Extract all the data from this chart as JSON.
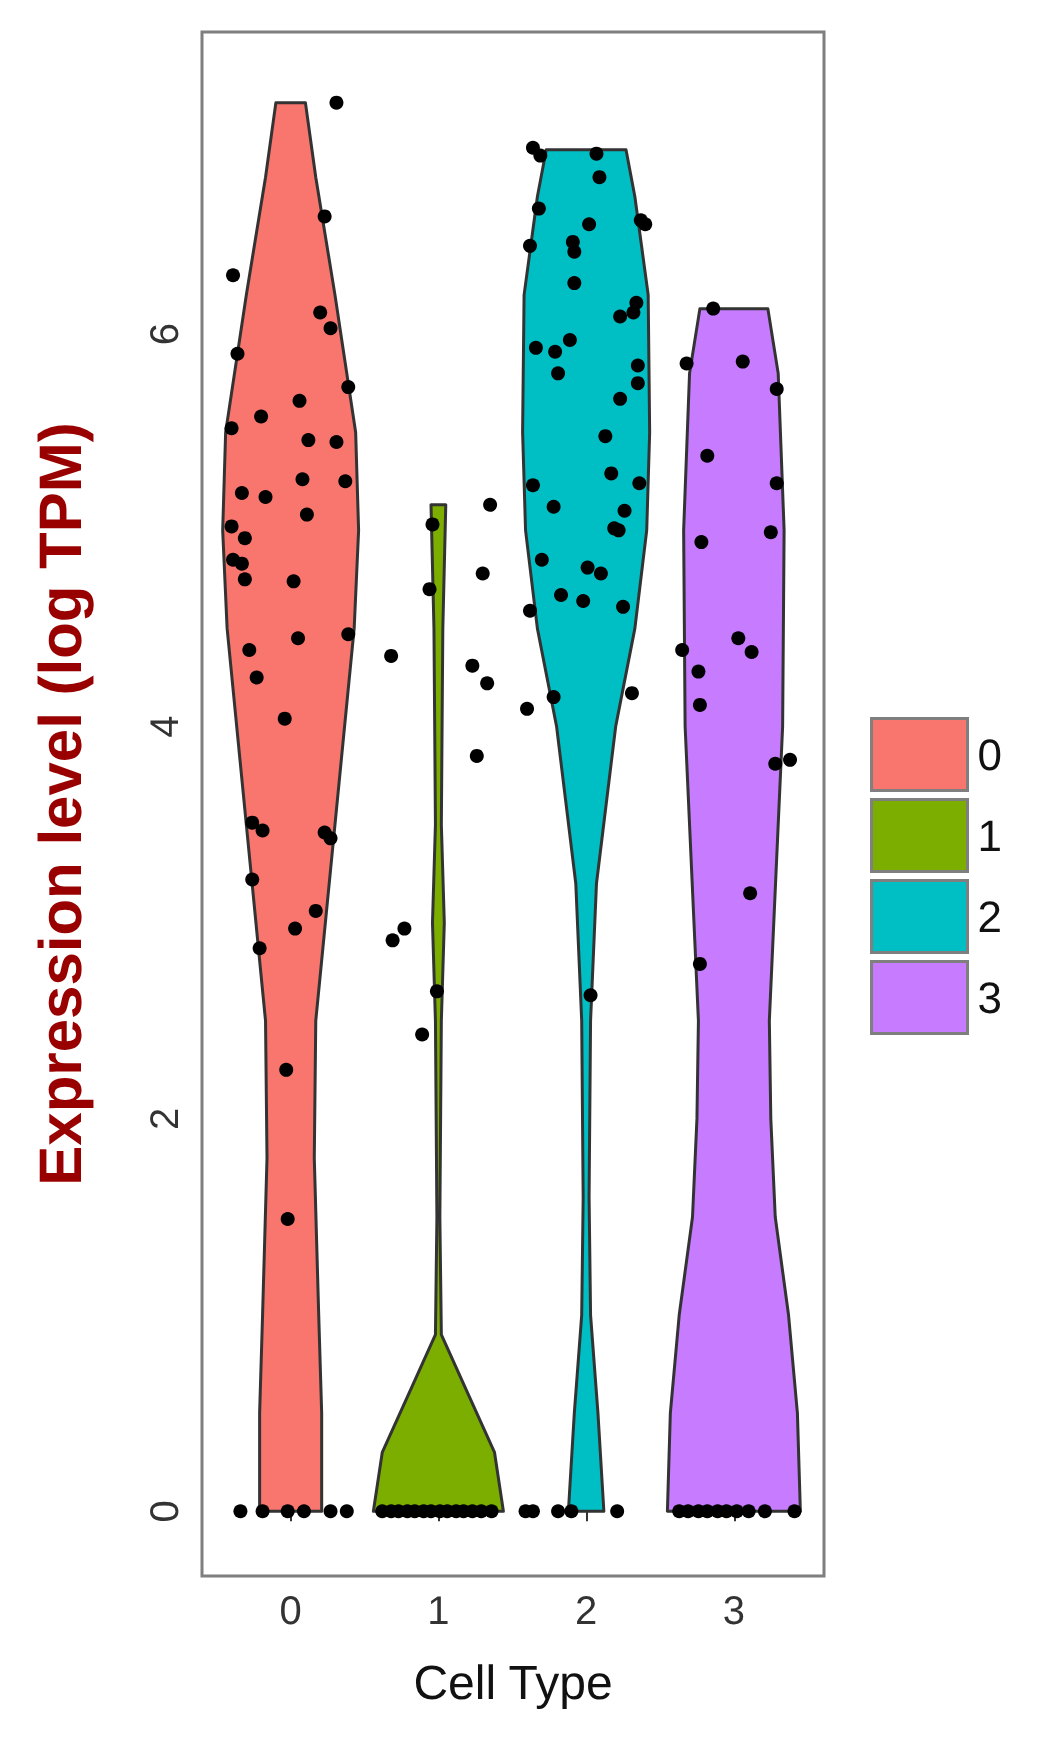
{
  "chart_data": {
    "type": "scatter",
    "xlabel": "Cell Type",
    "ylabel": "Expression level (log TPM)",
    "xlim": [
      -0.6,
      3.61
    ],
    "xticks": [
      0,
      1,
      2,
      3
    ],
    "ylim": [
      -0.33,
      7.54
    ],
    "yticks": [
      0,
      2,
      4,
      6
    ],
    "grid": false,
    "legend": "right",
    "series": [
      {
        "type": "area",
        "name": "0",
        "color": "#f8766d",
        "x": [
          0.21,
          0.21,
          0.19,
          0.16,
          0.17,
          0.3,
          0.43,
          0.46,
          0.44,
          0.3,
          0.17,
          0.1,
          -0.1,
          -0.17,
          -0.3,
          -0.44,
          -0.46,
          -0.43,
          -0.3,
          -0.17,
          -0.16,
          -0.19,
          -0.21,
          -0.21
        ],
        "values": [
          0,
          0.5,
          1,
          1.8,
          2.5,
          3.5,
          4.5,
          5,
          5.5,
          6.2,
          6.8,
          7.18,
          7.18,
          6.8,
          6.2,
          5.5,
          5,
          4.5,
          3.5,
          2.5,
          1.8,
          1,
          0.5,
          0
        ]
      },
      {
        "type": "area",
        "name": "1",
        "color": "#7cae00",
        "x": [
          1.44,
          1.38,
          1.2,
          1.02,
          1.01,
          1.02,
          1.04,
          1.02,
          1.03,
          1.05,
          0.95,
          0.97,
          0.98,
          0.96,
          0.98,
          0.99,
          0.98,
          0.8,
          0.62,
          0.56
        ],
        "values": [
          0,
          0.3,
          0.6,
          0.9,
          1.5,
          2.5,
          3,
          3.5,
          4.5,
          5.13,
          5.13,
          4.5,
          3.5,
          3,
          2.5,
          1.5,
          0.9,
          0.6,
          0.3,
          0
        ]
      },
      {
        "type": "area",
        "name": "2",
        "color": "#00bfc4",
        "x": [
          2.12,
          2.08,
          2.03,
          2.02,
          2.03,
          2.07,
          2.2,
          2.33,
          2.41,
          2.43,
          2.42,
          2.33,
          2.27,
          1.73,
          1.67,
          1.58,
          1.57,
          1.59,
          1.67,
          1.8,
          1.93,
          1.97,
          1.98,
          1.97,
          1.92,
          1.88
        ],
        "values": [
          0,
          0.5,
          1,
          1.6,
          2.5,
          3.2,
          4,
          4.5,
          5,
          5.5,
          6.2,
          6.7,
          6.94,
          6.94,
          6.7,
          6.2,
          5.5,
          5,
          4.5,
          4,
          3.2,
          2.5,
          1.6,
          1,
          0.5,
          0
        ]
      },
      {
        "type": "area",
        "name": "3",
        "color": "#c77cff",
        "x": [
          3.45,
          3.43,
          3.37,
          3.28,
          3.25,
          3.24,
          3.27,
          3.33,
          3.34,
          3.3,
          3.23,
          2.77,
          2.7,
          2.66,
          2.67,
          2.73,
          2.76,
          2.75,
          2.72,
          2.63,
          2.57,
          2.55
        ],
        "values": [
          0,
          0.5,
          1,
          1.5,
          2,
          2.5,
          3,
          4,
          5,
          5.8,
          6.13,
          6.13,
          5.8,
          5,
          4,
          3,
          2.5,
          2,
          1.5,
          1,
          0.5,
          0
        ]
      },
      {
        "color": "#000000",
        "marker": "circle",
        "x": [
          0.31,
          0.23,
          -0.39,
          0.2,
          0.27,
          -0.36,
          0.39,
          0.06,
          -0.2,
          -0.4,
          0.12,
          0.31,
          0.08,
          0.37,
          -0.33,
          -0.17,
          0.11,
          -0.4,
          -0.31,
          -0.39,
          -0.33,
          -0.31,
          0.02,
          0.39,
          0.05,
          -0.28,
          -0.23,
          -0.04,
          -0.26,
          -0.19,
          0.23,
          0.27,
          -0.26,
          0.17,
          0.03,
          -0.21,
          -0.03,
          -0.02,
          -0.34,
          -0.19,
          -0.02,
          0.09,
          0.27,
          0.38
        ],
        "values": [
          7.18,
          6.6,
          6.3,
          6.11,
          6.03,
          5.9,
          5.73,
          5.66,
          5.58,
          5.52,
          5.46,
          5.45,
          5.26,
          5.25,
          5.19,
          5.17,
          5.08,
          5.02,
          4.96,
          4.85,
          4.83,
          4.75,
          4.74,
          4.47,
          4.45,
          4.39,
          4.25,
          4.04,
          3.51,
          3.47,
          3.46,
          3.43,
          3.22,
          3.06,
          2.97,
          2.87,
          2.25,
          1.49,
          0,
          0,
          0,
          0,
          0,
          0
        ]
      },
      {
        "color": "#000000",
        "marker": "circle",
        "x": [
          1.35,
          0.96,
          1.3,
          0.94,
          0.68,
          1.23,
          1.33,
          1.26,
          0.77,
          0.69,
          0.99,
          0.89,
          0.62,
          0.68,
          0.73,
          0.79,
          0.84,
          0.9,
          0.95,
          1.01,
          1.06,
          1.12,
          1.17,
          1.23,
          1.29,
          1.36
        ],
        "values": [
          5.13,
          5.03,
          4.78,
          4.7,
          4.36,
          4.31,
          4.22,
          3.85,
          2.97,
          2.91,
          2.65,
          2.43,
          0,
          0,
          0,
          0,
          0,
          0,
          0,
          0,
          0,
          0,
          0,
          0,
          0,
          0
        ]
      },
      {
        "color": "#000000",
        "marker": "circle",
        "x": [
          1.64,
          1.69,
          2.07,
          2.09,
          1.68,
          2.02,
          2.37,
          2.4,
          1.62,
          1.91,
          1.92,
          1.92,
          2.34,
          2.23,
          2.32,
          1.66,
          1.79,
          1.89,
          1.81,
          2.35,
          2.35,
          2.23,
          2.13,
          2.17,
          2.36,
          1.64,
          1.78,
          2.26,
          2.19,
          2.22,
          1.7,
          2.01,
          2.1,
          1.83,
          1.98,
          2.25,
          1.62,
          1.78,
          2.31,
          1.6,
          2.03,
          1.59,
          1.64,
          1.81,
          1.9,
          2.21
        ],
        "values": [
          6.95,
          6.91,
          6.92,
          6.8,
          6.64,
          6.56,
          6.58,
          6.56,
          6.45,
          6.47,
          6.42,
          6.26,
          6.16,
          6.09,
          6.11,
          5.93,
          5.91,
          5.97,
          5.8,
          5.84,
          5.75,
          5.67,
          5.48,
          5.29,
          5.24,
          5.23,
          5.12,
          5.1,
          5.01,
          5,
          4.85,
          4.81,
          4.78,
          4.67,
          4.64,
          4.61,
          4.59,
          4.15,
          4.17,
          4.09,
          2.63,
          0,
          0,
          0,
          0,
          0
        ]
      },
      {
        "color": "#000000",
        "marker": "circle",
        "x": [
          2.86,
          2.68,
          3.06,
          3.29,
          2.82,
          3.29,
          2.78,
          3.25,
          3.03,
          3.12,
          2.65,
          2.76,
          2.77,
          3.28,
          3.38,
          3.11,
          2.77,
          2.63,
          2.69,
          2.76,
          2.82,
          2.89,
          2.95,
          3.02,
          3.1,
          3.21,
          3.41
        ],
        "values": [
          6.13,
          5.85,
          5.86,
          5.72,
          5.38,
          5.24,
          4.94,
          4.99,
          4.45,
          4.38,
          4.39,
          4.28,
          4.11,
          3.81,
          3.83,
          3.15,
          2.79,
          0,
          0,
          0,
          0,
          0,
          0,
          0,
          0,
          0,
          0
        ]
      }
    ]
  }
}
